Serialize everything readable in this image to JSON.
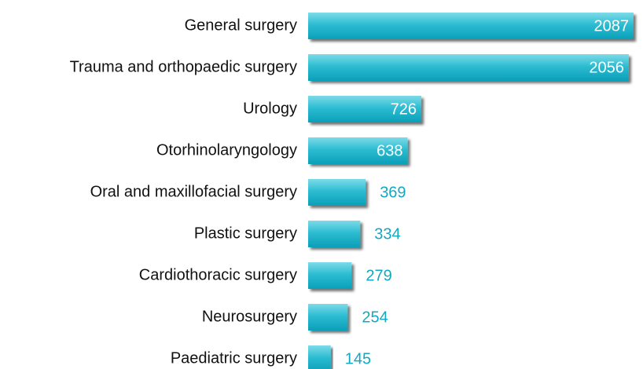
{
  "chart_data": {
    "type": "bar",
    "orientation": "horizontal",
    "categories": [
      "General surgery",
      "Trauma and orthopaedic surgery",
      "Urology",
      "Otorhinolaryngology",
      "Oral and maxillofacial surgery",
      "Plastic surgery",
      "Cardiothoracic surgery",
      "Neurosurgery",
      "Paediatric surgery"
    ],
    "values": [
      2087,
      2056,
      726,
      638,
      369,
      334,
      279,
      254,
      145
    ],
    "color": "#11a9c2"
  }
}
